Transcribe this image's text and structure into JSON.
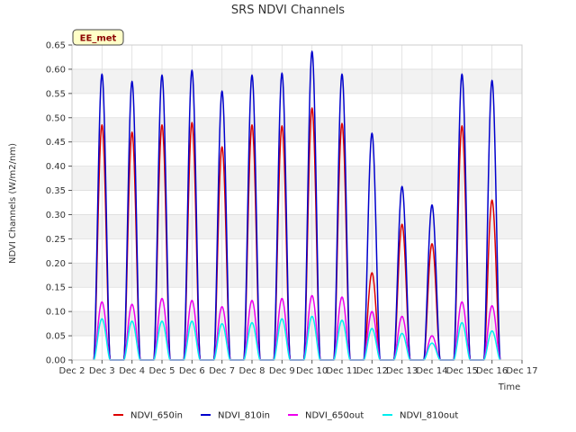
{
  "chart_data": {
    "type": "line",
    "title": "SRS NDVI Channels",
    "xlabel": "Time",
    "ylabel": "NDVI Channels (W/m2/nm)",
    "badge": "EE_met",
    "ylim": [
      0.0,
      0.65
    ],
    "xlim": [
      2,
      17
    ],
    "yticks": [
      "0.00",
      "0.05",
      "0.10",
      "0.15",
      "0.20",
      "0.25",
      "0.30",
      "0.35",
      "0.40",
      "0.45",
      "0.50",
      "0.55",
      "0.60",
      "0.65"
    ],
    "xtick_values": [
      2,
      3,
      4,
      5,
      6,
      7,
      8,
      9,
      10,
      11,
      12,
      13,
      14,
      15,
      16,
      17
    ],
    "xticks": [
      "Dec 2",
      "Dec 3",
      "Dec 4",
      "Dec 5",
      "Dec 6",
      "Dec 7",
      "Dec 8",
      "Dec 9",
      "Dec 10",
      "Dec 11",
      "Dec 12",
      "Dec 13",
      "Dec 14",
      "Dec 15",
      "Dec 16",
      "Dec 17"
    ],
    "grid": true,
    "legend_position": "bottom",
    "day_centers": [
      3.0,
      4.0,
      5.0,
      6.0,
      7.0,
      8.0,
      9.0,
      10.0,
      11.0,
      12.0,
      13.0,
      14.0,
      15.0,
      16.0
    ],
    "series": [
      {
        "name": "NDVI_650in",
        "color": "#dd0000",
        "peaks": [
          0.485,
          0.47,
          0.485,
          0.49,
          0.44,
          0.485,
          0.483,
          0.52,
          0.488,
          0.18,
          0.28,
          0.24,
          0.483,
          0.33
        ]
      },
      {
        "name": "NDVI_810in",
        "color": "#0000cc",
        "peaks": [
          0.59,
          0.575,
          0.588,
          0.598,
          0.555,
          0.588,
          0.592,
          0.637,
          0.59,
          0.468,
          0.358,
          0.32,
          0.59,
          0.577
        ]
      },
      {
        "name": "NDVI_650out",
        "color": "#ee00ee",
        "peaks": [
          0.12,
          0.115,
          0.127,
          0.123,
          0.11,
          0.123,
          0.127,
          0.133,
          0.13,
          0.1,
          0.09,
          0.05,
          0.12,
          0.112
        ]
      },
      {
        "name": "NDVI_810out",
        "color": "#00eeee",
        "peaks": [
          0.085,
          0.08,
          0.08,
          0.08,
          0.075,
          0.077,
          0.085,
          0.09,
          0.082,
          0.065,
          0.055,
          0.035,
          0.077,
          0.06
        ]
      }
    ]
  }
}
